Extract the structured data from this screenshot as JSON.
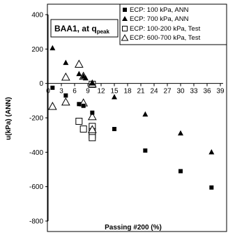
{
  "chart_data": {
    "type": "scatter",
    "xlabel": "Passing #200 (%)",
    "ylabel": "u(kPa) (ANN)",
    "xlim": [
      0,
      39
    ],
    "ylim": [
      -800,
      400
    ],
    "x_ticks": [
      0,
      3,
      6,
      9,
      12,
      15,
      18,
      21,
      24,
      27,
      30,
      33,
      36,
      39
    ],
    "y_ticks": [
      400,
      200,
      0,
      -200,
      -400,
      -600,
      -800
    ],
    "grid": false,
    "legend_position": "top-right",
    "annotation": {
      "text": "BAA1, at q",
      "subscript": "peak"
    },
    "series": [
      {
        "name": "ECP: 100 kPa, ANN",
        "marker": "filled-square",
        "points": [
          [
            1,
            -25
          ],
          [
            4,
            -70
          ],
          [
            7,
            -120
          ],
          [
            8,
            -130
          ],
          [
            10,
            -170
          ],
          [
            15,
            -265
          ],
          [
            22,
            -390
          ],
          [
            30,
            -510
          ],
          [
            37,
            -605
          ]
        ]
      },
      {
        "name": "ECP: 700 kPa, ANN",
        "marker": "filled-triangle",
        "points": [
          [
            1,
            205
          ],
          [
            4,
            120
          ],
          [
            7,
            55
          ],
          [
            8,
            40
          ],
          [
            8.5,
            30
          ],
          [
            10,
            0
          ],
          [
            15,
            -80
          ],
          [
            22,
            -180
          ],
          [
            30,
            -290
          ],
          [
            37,
            -400
          ]
        ]
      },
      {
        "name": "ECP: 100-200 kPa, Test",
        "marker": "open-square",
        "points": [
          [
            7,
            -220
          ],
          [
            8,
            -265
          ],
          [
            10,
            -5
          ],
          [
            10,
            -250
          ],
          [
            10,
            -280
          ],
          [
            10,
            -300
          ],
          [
            10,
            -315
          ]
        ]
      },
      {
        "name": "ECP: 600-700 kPa, Test",
        "marker": "open-triangle",
        "points": [
          [
            1,
            -135
          ],
          [
            4,
            35
          ],
          [
            4,
            -110
          ],
          [
            7,
            110
          ],
          [
            8,
            40
          ],
          [
            8,
            -115
          ],
          [
            10,
            -5
          ],
          [
            10,
            -195
          ],
          [
            10,
            -270
          ]
        ]
      }
    ]
  }
}
